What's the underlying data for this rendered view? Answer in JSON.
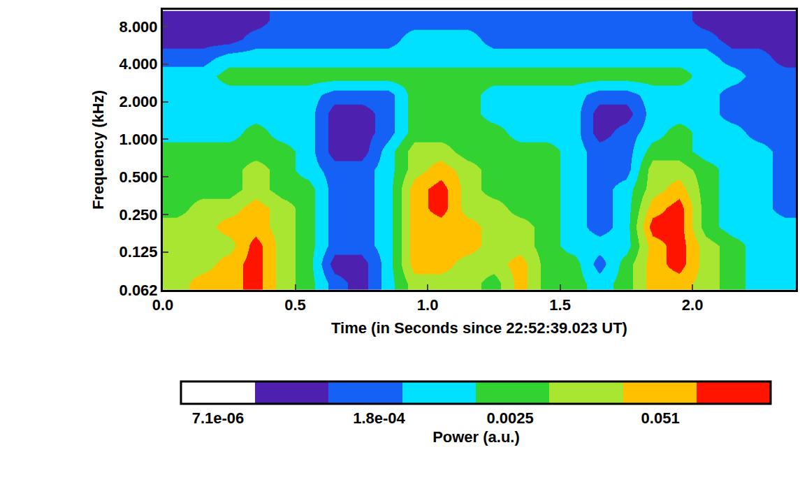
{
  "chart_data": {
    "type": "heatmap",
    "x_label": "Time (in Seconds since 22:52:39.023 UT)",
    "y_label": "Frequency (kHz)",
    "log": true,
    "grid": false,
    "xlim": [
      0,
      2.39
    ],
    "xticks": [
      {
        "value": 0,
        "label": "0.0"
      },
      0.5,
      {
        "value": 1,
        "label": "1.0"
      },
      1.5,
      {
        "value": 2,
        "label": "2.0"
      }
    ],
    "ylim": [
      0.062,
      10.9
    ],
    "yticks": [
      0.062,
      0.125,
      {
        "value": 0.25,
        "label": "0.250"
      },
      {
        "value": 0.5,
        "label": "0.500"
      },
      {
        "value": 1,
        "label": "1.000"
      },
      {
        "value": 2,
        "label": "2.000"
      },
      {
        "value": 4,
        "label": "4.000"
      },
      {
        "value": 8,
        "label": "8.000"
      }
    ],
    "x": [
      0.05,
      0.15,
      0.25,
      0.35,
      0.45,
      0.55,
      0.65,
      0.75,
      0.85,
      0.95,
      1.05,
      1.15,
      1.25,
      1.35,
      1.45,
      1.55,
      1.65,
      1.75,
      1.85,
      1.95,
      2.05,
      2.15,
      2.25,
      2.35
    ],
    "y": [
      0.07,
      0.1,
      0.14,
      0.2,
      0.28,
      0.4,
      0.57,
      0.8,
      1.13,
      1.6,
      2.26,
      3.2,
      4.5,
      6.4,
      9.0
    ],
    "values": [
      [
        0.012,
        0.012,
        0.012,
        0.012,
        0.0026,
        0.0026,
        0.0026,
        0.0026,
        0.0006,
        0.0006,
        0.0006,
        0.0006,
        0.00014,
        3e-05,
        3e-05
      ],
      [
        0.05,
        0.012,
        0.012,
        0.012,
        0.012,
        0.0026,
        0.0026,
        0.0026,
        0.0006,
        0.0006,
        0.0006,
        0.0006,
        0.00014,
        3e-05,
        3e-05
      ],
      [
        0.05,
        0.05,
        0.012,
        0.05,
        0.012,
        0.0026,
        0.0026,
        0.0026,
        0.0006,
        0.0006,
        0.0006,
        0.0026,
        0.0006,
        3e-05,
        3e-05
      ],
      [
        0.22,
        0.22,
        0.22,
        0.05,
        0.05,
        0.012,
        0.012,
        0.0026,
        0.0026,
        0.0006,
        0.0006,
        0.0026,
        0.0006,
        0.00014,
        3e-05
      ],
      [
        0.012,
        0.012,
        0.012,
        0.012,
        0.012,
        0.0026,
        0.0026,
        0.0026,
        0.0006,
        0.0006,
        0.0006,
        0.0026,
        0.0006,
        0.00014,
        0.00014
      ],
      [
        0.0026,
        0.0026,
        0.0026,
        0.0026,
        0.0026,
        0.0026,
        0.0006,
        0.0006,
        0.0006,
        0.0006,
        0.0006,
        0.0026,
        0.0006,
        0.00014,
        0.00014
      ],
      [
        0.00014,
        3e-05,
        0.00014,
        0.00014,
        0.00014,
        0.00014,
        0.00014,
        3e-05,
        3e-05,
        3e-05,
        0.00014,
        0.0026,
        0.0006,
        0.00014,
        0.00014
      ],
      [
        3e-05,
        3e-05,
        0.00014,
        0.00014,
        0.00014,
        0.00014,
        0.00014,
        3e-05,
        3e-05,
        3e-05,
        0.00014,
        0.0026,
        0.0006,
        0.00014,
        0.00014
      ],
      [
        0.0006,
        0.0006,
        0.0006,
        0.0006,
        0.0006,
        0.0006,
        0.0006,
        0.0006,
        0.00014,
        0.00014,
        0.00014,
        0.0026,
        0.0006,
        0.00014,
        0.00014
      ],
      [
        0.012,
        0.05,
        0.05,
        0.05,
        0.05,
        0.05,
        0.012,
        0.012,
        0.0026,
        0.0026,
        0.0026,
        0.0026,
        0.0006,
        0.0006,
        0.00014
      ],
      [
        0.012,
        0.05,
        0.05,
        0.05,
        0.22,
        0.22,
        0.05,
        0.012,
        0.0026,
        0.0026,
        0.0026,
        0.0026,
        0.0006,
        0.0006,
        0.00014
      ],
      [
        0.012,
        0.012,
        0.05,
        0.05,
        0.012,
        0.012,
        0.012,
        0.0026,
        0.0026,
        0.0026,
        0.0026,
        0.0026,
        0.0006,
        0.0006,
        0.00014
      ],
      [
        0.0026,
        0.012,
        0.012,
        0.012,
        0.012,
        0.0026,
        0.0026,
        0.0026,
        0.0026,
        0.0006,
        0.0006,
        0.0026,
        0.0006,
        0.00014,
        0.00014
      ],
      [
        0.05,
        0.05,
        0.012,
        0.012,
        0.0026,
        0.0026,
        0.0026,
        0.0026,
        0.0006,
        0.0006,
        0.0006,
        0.0026,
        0.0006,
        0.00014,
        0.00014
      ],
      [
        0.0026,
        0.0026,
        0.0026,
        0.0026,
        0.0026,
        0.0026,
        0.0026,
        0.0026,
        0.0006,
        0.0006,
        0.0006,
        0.0026,
        0.0006,
        0.00014,
        0.00014
      ],
      [
        0.0026,
        0.0026,
        0.0006,
        0.0006,
        0.0006,
        0.0006,
        0.0006,
        0.0006,
        0.0006,
        0.0006,
        0.0006,
        0.0026,
        0.0006,
        0.00014,
        0.00014
      ],
      [
        0.0006,
        0.00014,
        0.0006,
        0.00014,
        0.00014,
        0.00014,
        0.00014,
        0.00014,
        3e-05,
        3e-05,
        0.00014,
        0.0026,
        0.0006,
        0.00014,
        0.00014
      ],
      [
        0.0026,
        0.0026,
        0.0006,
        0.0006,
        0.0006,
        0.0006,
        0.00014,
        0.00014,
        0.00014,
        3e-05,
        0.00014,
        0.0026,
        0.0006,
        0.00014,
        0.00014
      ],
      [
        0.05,
        0.05,
        0.05,
        0.22,
        0.05,
        0.012,
        0.012,
        0.0026,
        0.0006,
        0.0006,
        0.0006,
        0.0026,
        0.0006,
        0.00014,
        0.00014
      ],
      [
        0.05,
        0.22,
        0.22,
        0.22,
        0.22,
        0.05,
        0.012,
        0.0026,
        0.0026,
        0.0006,
        0.0006,
        0.0026,
        0.0006,
        0.00014,
        0.00014
      ],
      [
        0.012,
        0.012,
        0.012,
        0.0026,
        0.0026,
        0.0026,
        0.0026,
        0.0006,
        0.0006,
        0.0006,
        0.0006,
        0.0006,
        0.0006,
        0.00014,
        3e-05
      ],
      [
        0.0026,
        0.0026,
        0.0026,
        0.0006,
        0.0006,
        0.0006,
        0.0006,
        0.0006,
        0.0006,
        0.00014,
        0.00014,
        0.0006,
        0.00014,
        3e-05,
        3e-05
      ],
      [
        0.0006,
        0.0006,
        0.0006,
        0.0006,
        0.0006,
        0.0006,
        0.0006,
        0.0006,
        0.00014,
        0.00014,
        0.00014,
        0.00014,
        0.00014,
        3e-05,
        3e-05
      ],
      [
        0.0006,
        0.0006,
        0.0006,
        0.0006,
        0.00014,
        0.00014,
        0.00014,
        0.00014,
        0.00014,
        0.00014,
        0.00014,
        0.00014,
        3e-05,
        3e-05,
        3e-05
      ]
    ],
    "colorbar": {
      "title": "Power (a.u.)",
      "range": [
        3.4e-06,
        0.47
      ],
      "ticks": [
        {
          "value": 7.1e-06,
          "label": "7.1e-06"
        },
        {
          "value": 0.00018,
          "label": "1.8e-04"
        },
        0.0025,
        0.051
      ],
      "colors": [
        "#ffffff",
        "#4d20b0",
        "#1560f5",
        "#00e1ff",
        "#32d232",
        "#a8e632",
        "#ffc000",
        "#ff1400"
      ]
    }
  }
}
